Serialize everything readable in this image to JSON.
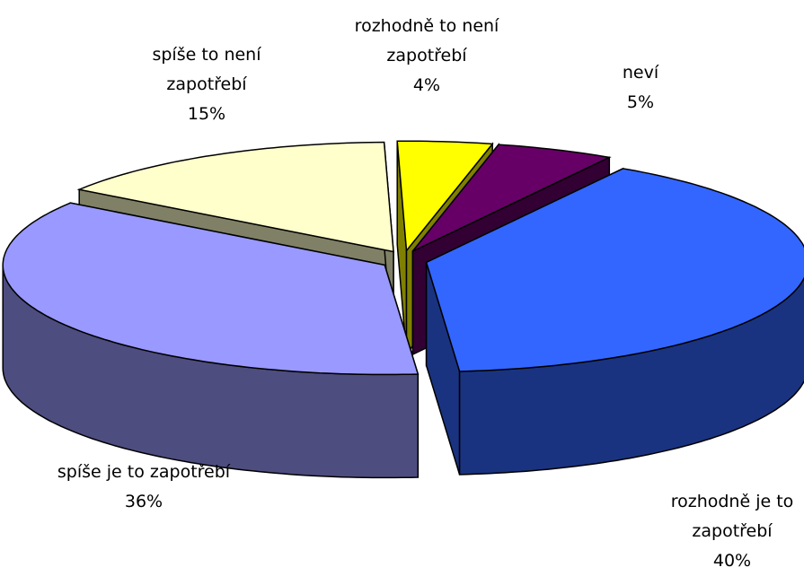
{
  "chart_data": {
    "type": "pie",
    "categories": [
      "rozhodně je to zapotřebí",
      "spíše je to zapotřebí",
      "spíše to není zapotřebí",
      "rozhodně to není zapotřebí",
      "neví"
    ],
    "values": [
      40,
      36,
      15,
      4,
      5
    ],
    "value_labels": [
      "40%",
      "36%",
      "15%",
      "4%",
      "5%"
    ],
    "colors": [
      "#3366ff",
      "#9999ff",
      "#ffffcc",
      "#ffff00",
      "#660066"
    ]
  }
}
